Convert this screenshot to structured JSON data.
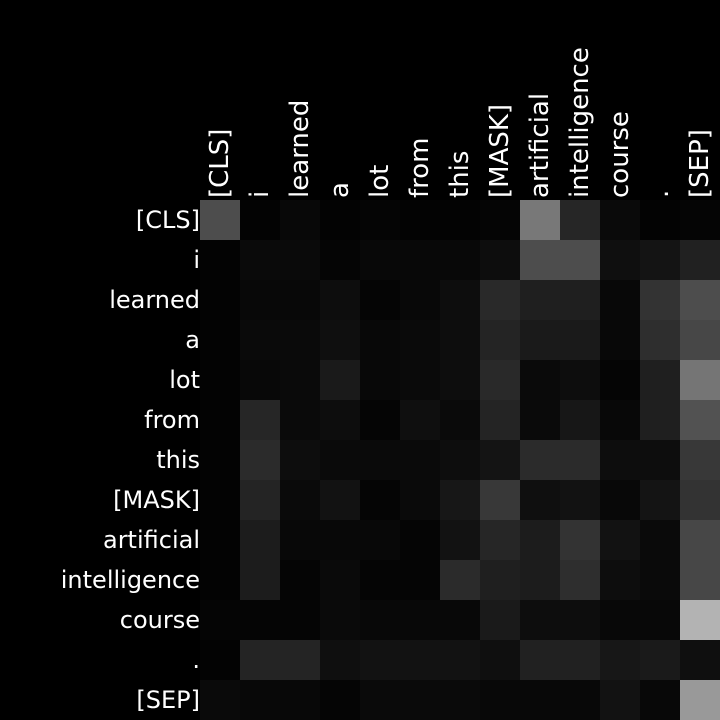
{
  "chart_data": {
    "type": "heatmap",
    "colormap": "grayscale",
    "xlabels": [
      "[CLS]",
      "i",
      "learned",
      "a",
      "lot",
      "from",
      "this",
      "[MASK]",
      "artificial",
      "intelligence",
      "course",
      ".",
      "[SEP]"
    ],
    "ylabels": [
      "[CLS]",
      "i",
      "learned",
      "a",
      "lot",
      "from",
      "this",
      "[MASK]",
      "artificial",
      "intelligence",
      "course",
      ".",
      "[SEP]"
    ],
    "vrange": [
      0,
      1
    ],
    "values": [
      [
        0.3,
        0.01,
        0.03,
        0.01,
        0.02,
        0.01,
        0.01,
        0.02,
        0.47,
        0.15,
        0.04,
        0.01,
        0.02
      ],
      [
        0.01,
        0.04,
        0.04,
        0.02,
        0.03,
        0.03,
        0.03,
        0.05,
        0.3,
        0.3,
        0.06,
        0.08,
        0.13
      ],
      [
        0.01,
        0.03,
        0.03,
        0.05,
        0.02,
        0.03,
        0.05,
        0.16,
        0.12,
        0.12,
        0.03,
        0.2,
        0.3
      ],
      [
        0.01,
        0.04,
        0.04,
        0.06,
        0.03,
        0.04,
        0.05,
        0.14,
        0.1,
        0.1,
        0.03,
        0.18,
        0.28
      ],
      [
        0.01,
        0.03,
        0.04,
        0.1,
        0.03,
        0.04,
        0.05,
        0.16,
        0.04,
        0.05,
        0.02,
        0.12,
        0.46
      ],
      [
        0.01,
        0.15,
        0.04,
        0.05,
        0.02,
        0.06,
        0.04,
        0.14,
        0.04,
        0.09,
        0.03,
        0.12,
        0.32
      ],
      [
        0.01,
        0.17,
        0.05,
        0.04,
        0.04,
        0.04,
        0.05,
        0.08,
        0.17,
        0.17,
        0.05,
        0.05,
        0.22
      ],
      [
        0.01,
        0.14,
        0.04,
        0.07,
        0.02,
        0.04,
        0.09,
        0.22,
        0.06,
        0.07,
        0.03,
        0.08,
        0.2
      ],
      [
        0.01,
        0.11,
        0.03,
        0.03,
        0.03,
        0.02,
        0.07,
        0.15,
        0.11,
        0.2,
        0.07,
        0.04,
        0.28
      ],
      [
        0.01,
        0.11,
        0.02,
        0.04,
        0.02,
        0.02,
        0.17,
        0.12,
        0.11,
        0.18,
        0.05,
        0.04,
        0.28
      ],
      [
        0.02,
        0.02,
        0.02,
        0.04,
        0.03,
        0.03,
        0.03,
        0.1,
        0.05,
        0.05,
        0.03,
        0.03,
        0.7
      ],
      [
        0.01,
        0.14,
        0.14,
        0.06,
        0.07,
        0.07,
        0.07,
        0.06,
        0.13,
        0.13,
        0.09,
        0.1,
        0.06
      ],
      [
        0.04,
        0.03,
        0.03,
        0.02,
        0.04,
        0.04,
        0.04,
        0.03,
        0.03,
        0.03,
        0.07,
        0.03,
        0.6
      ]
    ]
  }
}
